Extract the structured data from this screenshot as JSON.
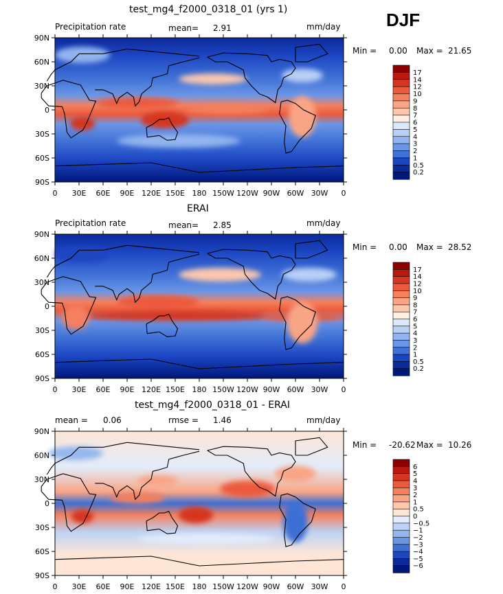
{
  "season": "DJF",
  "chart_data": [
    {
      "type": "heatmap",
      "id": "model",
      "title": "test_mg4_f2000_0318_01 (yrs 1)",
      "left_label": "Precipitation rate",
      "stat_label": "mean=",
      "stat_value": "2.91",
      "units": "mm/day",
      "minmax": {
        "min_label": "Min =",
        "min": "0.00",
        "max_label": "Max =",
        "max": "21.65"
      },
      "x_ticks": [
        "0",
        "30E",
        "60E",
        "90E",
        "120E",
        "150E",
        "180",
        "150W",
        "120W",
        "90W",
        "60W",
        "30W",
        "0"
      ],
      "y_ticks": [
        "90N",
        "60N",
        "30N",
        "0",
        "30S",
        "60S",
        "90S"
      ],
      "colorbar": {
        "levels": [
          "17",
          "14",
          "12",
          "10",
          "9",
          "8",
          "7",
          "6",
          "5",
          "4",
          "3",
          "2",
          "1",
          "0.5",
          "0.2"
        ],
        "colors": [
          "#8b0000",
          "#b8180d",
          "#d6361f",
          "#eb5a3c",
          "#f4805e",
          "#f9a585",
          "#fcc7ad",
          "#fff0e1",
          "#dde8fa",
          "#b9d0f6",
          "#93b5ef",
          "#6b96e6",
          "#3f71d6",
          "#1c45c2",
          "#0b2a9a",
          "#00177a"
        ]
      }
    },
    {
      "type": "heatmap",
      "id": "obs",
      "title": "ERAI",
      "left_label": "Precipitation rate",
      "stat_label": "mean=",
      "stat_value": "2.85",
      "units": "mm/day",
      "minmax": {
        "min_label": "Min =",
        "min": "0.00",
        "max_label": "Max =",
        "max": "28.52"
      },
      "x_ticks": [
        "0",
        "30E",
        "60E",
        "90E",
        "120E",
        "150E",
        "180",
        "150W",
        "120W",
        "90W",
        "60W",
        "30W",
        "0"
      ],
      "y_ticks": [
        "90N",
        "60N",
        "30N",
        "0",
        "30S",
        "60S",
        "90S"
      ],
      "colorbar": {
        "levels": [
          "17",
          "14",
          "12",
          "10",
          "9",
          "8",
          "7",
          "6",
          "5",
          "4",
          "3",
          "2",
          "1",
          "0.5",
          "0.2"
        ],
        "colors": [
          "#8b0000",
          "#b8180d",
          "#d6361f",
          "#eb5a3c",
          "#f4805e",
          "#f9a585",
          "#fcc7ad",
          "#fff0e1",
          "#dde8fa",
          "#b9d0f6",
          "#93b5ef",
          "#6b96e6",
          "#3f71d6",
          "#1c45c2",
          "#0b2a9a",
          "#00177a"
        ]
      }
    },
    {
      "type": "heatmap",
      "id": "diff",
      "title": "test_mg4_f2000_0318_01 - ERAI",
      "stat_label": "mean =",
      "stat_value": "0.06",
      "rmse_label": "rmse =",
      "rmse_value": "1.46",
      "units": "mm/day",
      "minmax": {
        "min_label": "Min =",
        "min": "-20.62",
        "max_label": "Max =",
        "max": "10.26"
      },
      "x_ticks": [
        "0",
        "30E",
        "60E",
        "90E",
        "120E",
        "150E",
        "180",
        "150W",
        "120W",
        "90W",
        "60W",
        "30W",
        "0"
      ],
      "y_ticks": [
        "90N",
        "60N",
        "30N",
        "0",
        "30S",
        "60S",
        "90S"
      ],
      "colorbar": {
        "levels": [
          "6",
          "5",
          "4",
          "3",
          "2",
          "1",
          "0.5",
          "0",
          "−0.5",
          "−1",
          "−2",
          "−3",
          "−4",
          "−5",
          "−6"
        ],
        "colors": [
          "#8b0000",
          "#b8180d",
          "#d6361f",
          "#eb5a3c",
          "#f4805e",
          "#f9a585",
          "#fcc7ad",
          "#fde6d6",
          "#e2ecfa",
          "#bcd3f5",
          "#94b7ee",
          "#6a95e4",
          "#3e6fd4",
          "#1d46bf",
          "#0b2a9a",
          "#00177a"
        ]
      }
    }
  ]
}
